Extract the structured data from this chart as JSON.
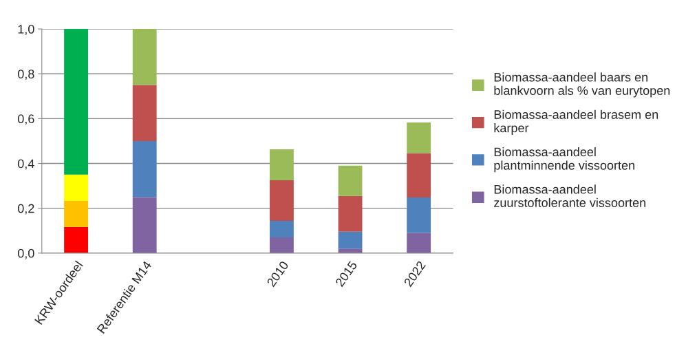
{
  "chart_data": {
    "type": "bar",
    "stacked": true,
    "categories": [
      "KRW-oordeel",
      "Referentie M14",
      null,
      "2010",
      "2015",
      "2022"
    ],
    "series": [
      {
        "name": "Biomassa-aandeel\nzuurstoftolerante vissoorten",
        "color": "#8064a2",
        "colors": [
          "#ff0000",
          "#8064a2",
          "#8064a2",
          "#8064a2",
          "#8064a2",
          "#8064a2"
        ],
        "values": [
          0.117,
          0.25,
          null,
          0.07,
          0.02,
          0.09
        ]
      },
      {
        "name": "Biomassa-aandeel\nplantminnende vissoorten",
        "color": "#4f81bd",
        "colors": [
          "#ffc000",
          "#4f81bd",
          "#4f81bd",
          "#4f81bd",
          "#4f81bd",
          "#4f81bd"
        ],
        "values": [
          0.116,
          0.25,
          null,
          0.074,
          0.075,
          0.158
        ]
      },
      {
        "name": "Biomassa-aandeel brasem en\nkarper",
        "color": "#c0504d",
        "colors": [
          "#ffff00",
          "#c0504d",
          "#c0504d",
          "#c0504d",
          "#c0504d",
          "#c0504d"
        ],
        "values": [
          0.117,
          0.25,
          null,
          0.181,
          0.16,
          0.197
        ]
      },
      {
        "name": "Biomassa-aandeel baars en\nblankvoorn als % van eurytopen",
        "color": "#9bbb59",
        "colors": [
          "#00b050",
          "#9bbb59",
          "#9bbb59",
          "#9bbb59",
          "#9bbb59",
          "#9bbb59"
        ],
        "values": [
          0.65,
          0.25,
          null,
          0.138,
          0.135,
          0.138
        ]
      }
    ],
    "ylim": [
      0,
      1
    ],
    "yticks": [
      {
        "value": 0,
        "label": "0,0"
      },
      {
        "value": 0.2,
        "label": "0,2"
      },
      {
        "value": 0.4,
        "label": "0,4"
      },
      {
        "value": 0.6,
        "label": "0,6"
      },
      {
        "value": 0.8,
        "label": "0,8"
      },
      {
        "value": 1.0,
        "label": "1,0"
      }
    ],
    "grid": "y",
    "legend": "right"
  }
}
